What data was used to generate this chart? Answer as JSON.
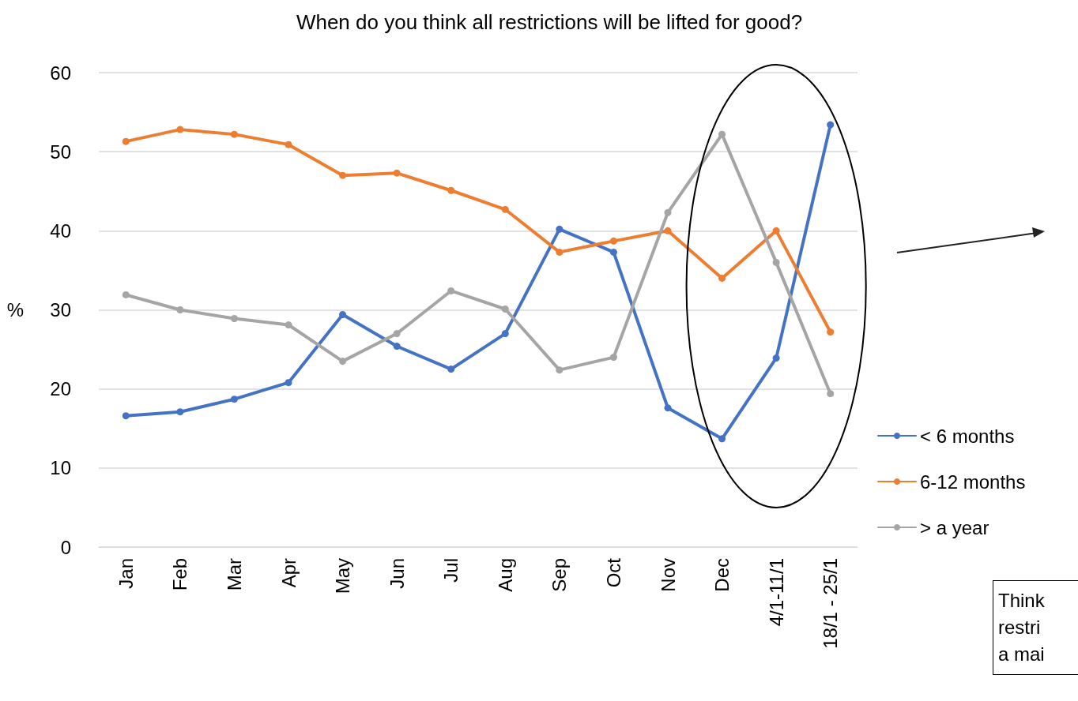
{
  "chart_data": {
    "type": "line",
    "title": "When do you think all restrictions will be lifted for good?",
    "ylabel": "%",
    "categories": [
      "Jan",
      "Feb",
      "Mar",
      "Apr",
      "May",
      "Jun",
      "Jul",
      "Aug",
      "Sep",
      "Oct",
      "Nov",
      "Dec",
      "4/1-11/1",
      "18/1 - 25/1"
    ],
    "series": [
      {
        "name": "< 6 months",
        "color": "#4472c4",
        "values": [
          16.6,
          17.1,
          18.7,
          20.8,
          29.4,
          25.4,
          22.5,
          27.0,
          40.2,
          37.3,
          17.6,
          13.7,
          23.9,
          53.4
        ]
      },
      {
        "name": "6-12 months",
        "color": "#ed7d31",
        "values": [
          51.3,
          52.8,
          52.2,
          50.9,
          47.0,
          47.3,
          45.1,
          42.7,
          37.3,
          38.7,
          40.0,
          34.0,
          40.0,
          27.2
        ]
      },
      {
        "name": "> a year",
        "color": "#a5a5a5",
        "values": [
          31.9,
          30.0,
          28.9,
          28.1,
          23.5,
          27.0,
          32.4,
          30.1,
          22.4,
          24.0,
          42.3,
          52.2,
          36.0,
          19.4
        ]
      }
    ],
    "ylim": [
      0,
      60
    ],
    "yticks": [
      0,
      10,
      20,
      30,
      40,
      50,
      60
    ],
    "grid": "y",
    "legend": "right",
    "marker": "circle",
    "line_style": "solid",
    "annotations": [
      "Think\nrestri\na mai"
    ]
  }
}
